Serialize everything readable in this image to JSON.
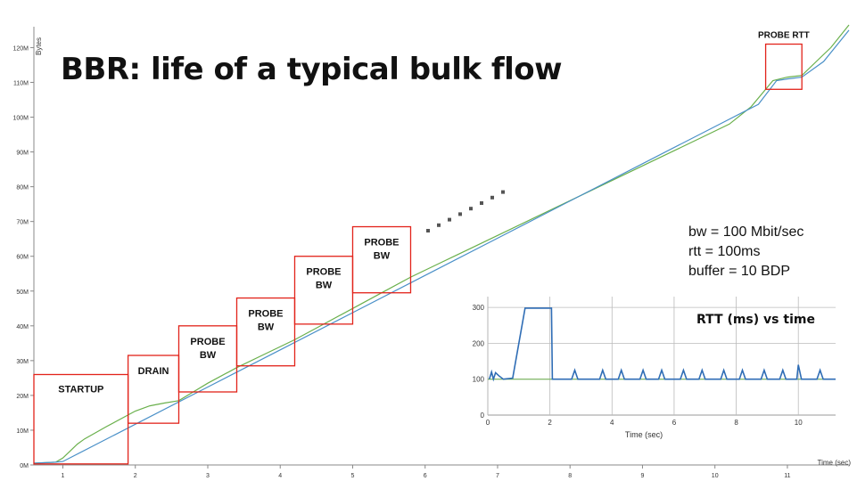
{
  "title": "BBR: life of a typical bulk flow",
  "params": [
    "bw = 100 Mbit/sec",
    "rtt = 100ms",
    "buffer = 10 BDP"
  ],
  "colors": {
    "green": "#6ab04c",
    "blue": "#4a90c8",
    "box": "#e2231a",
    "inset_line": "#2f6db5"
  },
  "chart_data": [
    {
      "type": "line",
      "ylabel": "Bytes",
      "xlabel": "Time (sec)",
      "x_ticks": [
        1,
        2,
        3,
        4,
        5,
        6,
        7,
        8,
        9,
        10,
        11
      ],
      "y_ticks": [
        {
          "v": 0,
          "label": "0M"
        },
        {
          "v": 10,
          "label": "10M"
        },
        {
          "v": 20,
          "label": "20M"
        },
        {
          "v": 30,
          "label": "30M"
        },
        {
          "v": 40,
          "label": "40M"
        },
        {
          "v": 50,
          "label": "50M"
        },
        {
          "v": 60,
          "label": "60M"
        },
        {
          "v": 70,
          "label": "70M"
        },
        {
          "v": 80,
          "label": "80M"
        },
        {
          "v": 90,
          "label": "90M"
        },
        {
          "v": 100,
          "label": "100M"
        },
        {
          "v": 110,
          "label": "110M"
        },
        {
          "v": 120,
          "label": "120M"
        }
      ],
      "xlim": [
        0.6,
        11.85
      ],
      "ylim": [
        0,
        126
      ],
      "series": [
        {
          "color": "#6ab04c",
          "points": [
            [
              0.6,
              0.5
            ],
            [
              0.9,
              0.8
            ],
            [
              1.0,
              2
            ],
            [
              1.1,
              4
            ],
            [
              1.2,
              6
            ],
            [
              1.3,
              7.5
            ],
            [
              1.6,
              11
            ],
            [
              2.0,
              15.5
            ],
            [
              2.2,
              17
            ],
            [
              2.4,
              17.8
            ],
            [
              2.6,
              18.5
            ],
            [
              2.8,
              21
            ],
            [
              3.0,
              23.5
            ],
            [
              3.4,
              28
            ],
            [
              3.8,
              32
            ],
            [
              4.2,
              36
            ],
            [
              4.6,
              40.5
            ],
            [
              5.0,
              45
            ],
            [
              5.4,
              49.5
            ],
            [
              5.8,
              54
            ],
            [
              6.2,
              58
            ],
            [
              6.6,
              62
            ],
            [
              7.0,
              66
            ],
            [
              7.4,
              70
            ],
            [
              7.8,
              74
            ],
            [
              8.2,
              78
            ],
            [
              8.6,
              82
            ],
            [
              9.0,
              86
            ],
            [
              9.4,
              90
            ],
            [
              9.8,
              94
            ],
            [
              10.2,
              98
            ],
            [
              10.5,
              103
            ],
            [
              10.8,
              110.5
            ],
            [
              11.0,
              111.5
            ],
            [
              11.2,
              112
            ],
            [
              11.4,
              116
            ],
            [
              11.6,
              120
            ],
            [
              11.85,
              126.5
            ]
          ]
        },
        {
          "color": "#4a90c8",
          "points": [
            [
              0.6,
              0.5
            ],
            [
              0.9,
              0.8
            ],
            [
              1.0,
              1
            ],
            [
              2.0,
              11.7
            ],
            [
              3.0,
              22.4
            ],
            [
              4.0,
              33.1
            ],
            [
              5.0,
              43.8
            ],
            [
              6.0,
              54.5
            ],
            [
              7.0,
              65.2
            ],
            [
              8.0,
              75.9
            ],
            [
              9.0,
              86.6
            ],
            [
              10.0,
              97.3
            ],
            [
              10.6,
              103.7
            ],
            [
              10.85,
              110.5
            ],
            [
              11.0,
              111
            ],
            [
              11.2,
              111.5
            ],
            [
              11.5,
              116
            ],
            [
              11.85,
              125
            ]
          ]
        }
      ],
      "annotations": [
        {
          "label": "STARTUP",
          "x0": 0.6,
          "x1": 1.9,
          "y0": 0.3,
          "y1": 26
        },
        {
          "label": "DRAIN",
          "x0": 1.9,
          "x1": 2.6,
          "y0": 12,
          "y1": 31.5
        },
        {
          "label": "PROBE BW",
          "x0": 2.6,
          "x1": 3.4,
          "y0": 21,
          "y1": 40
        },
        {
          "label": "PROBE BW",
          "x0": 3.4,
          "x1": 4.2,
          "y0": 28.5,
          "y1": 48
        },
        {
          "label": "PROBE BW",
          "x0": 4.2,
          "x1": 5.0,
          "y0": 40.5,
          "y1": 60
        },
        {
          "label": "PROBE BW",
          "x0": 5.0,
          "x1": 5.8,
          "y0": 49.5,
          "y1": 68.5
        },
        {
          "label": "PROBE RTT",
          "x0": 10.7,
          "x1": 11.2,
          "y0": 108,
          "y1": 121
        }
      ]
    },
    {
      "type": "line",
      "title": "RTT (ms) vs time",
      "xlabel": "Time (sec)",
      "x_ticks": [
        0,
        2,
        4,
        6,
        8,
        10
      ],
      "y_ticks": [
        0,
        100,
        200,
        300
      ],
      "xlim": [
        0,
        11.2
      ],
      "ylim": [
        0,
        330
      ],
      "baseline": 100,
      "series": [
        {
          "color": "#2f6db5",
          "points": [
            [
              0.05,
              100
            ],
            [
              0.12,
              120
            ],
            [
              0.18,
              100
            ],
            [
              0.25,
              118
            ],
            [
              0.35,
              110
            ],
            [
              0.5,
              100
            ],
            [
              0.8,
              103
            ],
            [
              1.2,
              298
            ],
            [
              2.05,
              298
            ],
            [
              2.08,
              100
            ],
            [
              2.7,
              100
            ],
            [
              2.8,
              125
            ],
            [
              2.9,
              100
            ],
            [
              3.6,
              100
            ],
            [
              3.7,
              125
            ],
            [
              3.8,
              100
            ],
            [
              4.2,
              100
            ],
            [
              4.3,
              125
            ],
            [
              4.4,
              100
            ],
            [
              4.9,
              100
            ],
            [
              5.0,
              125
            ],
            [
              5.1,
              100
            ],
            [
              5.5,
              100
            ],
            [
              5.6,
              125
            ],
            [
              5.7,
              100
            ],
            [
              6.2,
              100
            ],
            [
              6.3,
              125
            ],
            [
              6.4,
              100
            ],
            [
              6.8,
              100
            ],
            [
              6.9,
              125
            ],
            [
              7.0,
              100
            ],
            [
              7.5,
              100
            ],
            [
              7.6,
              125
            ],
            [
              7.7,
              100
            ],
            [
              8.1,
              100
            ],
            [
              8.2,
              125
            ],
            [
              8.3,
              100
            ],
            [
              8.8,
              100
            ],
            [
              8.9,
              125
            ],
            [
              9.0,
              100
            ],
            [
              9.4,
              100
            ],
            [
              9.5,
              125
            ],
            [
              9.6,
              100
            ],
            [
              9.95,
              100
            ],
            [
              10.0,
              140
            ],
            [
              10.1,
              100
            ],
            [
              10.6,
              100
            ],
            [
              10.7,
              125
            ],
            [
              10.8,
              100
            ],
            [
              11.2,
              100
            ]
          ]
        }
      ]
    }
  ]
}
